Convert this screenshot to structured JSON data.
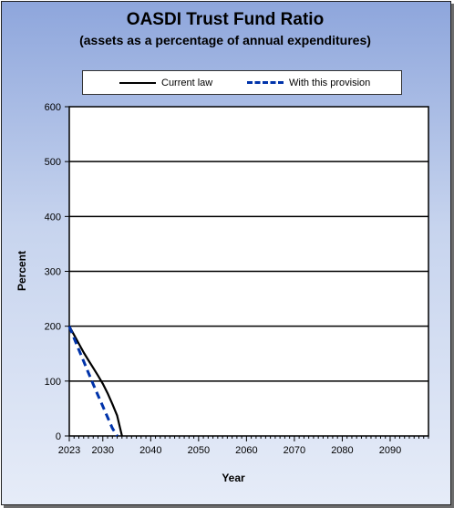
{
  "chart_data": {
    "type": "line",
    "title": "OASDI Trust Fund Ratio",
    "subtitle": "(assets as a percentage of annual expenditures)",
    "xlabel": "Year",
    "ylabel": "Percent",
    "xlim": [
      2023,
      2098
    ],
    "ylim": [
      0,
      600
    ],
    "yticks": [
      0,
      100,
      200,
      300,
      400,
      500,
      600
    ],
    "xticks": [
      2023,
      2030,
      2040,
      2050,
      2060,
      2070,
      2080,
      2090
    ],
    "grid": "horizontal",
    "legend_position": "top",
    "series": [
      {
        "name": "Current law",
        "style": "solid",
        "color": "#000000",
        "x": [
          2023,
          2024,
          2025,
          2026,
          2027,
          2028,
          2029,
          2030,
          2031,
          2032,
          2033,
          2034
        ],
        "y": [
          200,
          184,
          168,
          152,
          138,
          124,
          110,
          95,
          78,
          58,
          37,
          0
        ]
      },
      {
        "name": "With this provision",
        "style": "dashed",
        "color": "#0033aa",
        "x": [
          2023,
          2024,
          2025,
          2026,
          2027,
          2028,
          2029,
          2030,
          2031,
          2032,
          2033
        ],
        "y": [
          200,
          178,
          157,
          136,
          115,
          94,
          74,
          54,
          34,
          14,
          0
        ]
      }
    ]
  }
}
